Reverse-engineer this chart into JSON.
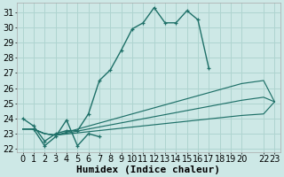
{
  "xlabel": "Humidex (Indice chaleur)",
  "bg_color": "#cde8e6",
  "grid_color": "#afd4d0",
  "line_color": "#1e7068",
  "xlim": [
    -0.5,
    23.5
  ],
  "ylim": [
    21.8,
    31.6
  ],
  "xtick_vals": [
    0,
    1,
    2,
    3,
    4,
    5,
    6,
    7,
    8,
    9,
    10,
    11,
    12,
    13,
    14,
    15,
    16,
    17,
    18,
    19,
    20,
    22,
    23
  ],
  "xtick_labels": [
    "0",
    "1",
    "2",
    "3",
    "4",
    "5",
    "6",
    "7",
    "8",
    "9",
    "10",
    "11",
    "12",
    "13",
    "14",
    "15",
    "16",
    "17",
    "18",
    "19",
    "20",
    "22",
    "23"
  ],
  "ytick_vals": [
    22,
    23,
    24,
    25,
    26,
    27,
    28,
    29,
    30,
    31
  ],
  "curve1_x": [
    0,
    1,
    2,
    3,
    4,
    5,
    6,
    7,
    8,
    9,
    10,
    11,
    12,
    13,
    14,
    15,
    16,
    17
  ],
  "curve1_y": [
    24.0,
    23.5,
    22.5,
    23.0,
    23.2,
    23.2,
    24.3,
    26.5,
    27.2,
    28.5,
    29.9,
    30.3,
    31.3,
    30.3,
    30.3,
    31.1,
    30.5,
    27.3
  ],
  "curve2_x": [
    1,
    2,
    3,
    4,
    5,
    6,
    7
  ],
  "curve2_y": [
    23.3,
    22.2,
    22.8,
    23.9,
    22.2,
    23.0,
    22.8
  ],
  "line_upper_x": [
    0,
    1,
    2,
    3,
    20,
    22,
    23
  ],
  "line_upper_y": [
    23.3,
    23.3,
    23.0,
    22.9,
    26.3,
    26.5,
    25.1
  ],
  "line_mid_x": [
    0,
    1,
    2,
    3,
    20,
    22,
    23
  ],
  "line_mid_y": [
    23.3,
    23.3,
    23.0,
    22.9,
    25.2,
    25.4,
    25.1
  ],
  "line_low_x": [
    0,
    1,
    2,
    3,
    20,
    22,
    23
  ],
  "line_low_y": [
    23.3,
    23.3,
    23.0,
    22.9,
    24.2,
    24.3,
    25.1
  ],
  "font_size_label": 8,
  "font_size_tick": 7
}
